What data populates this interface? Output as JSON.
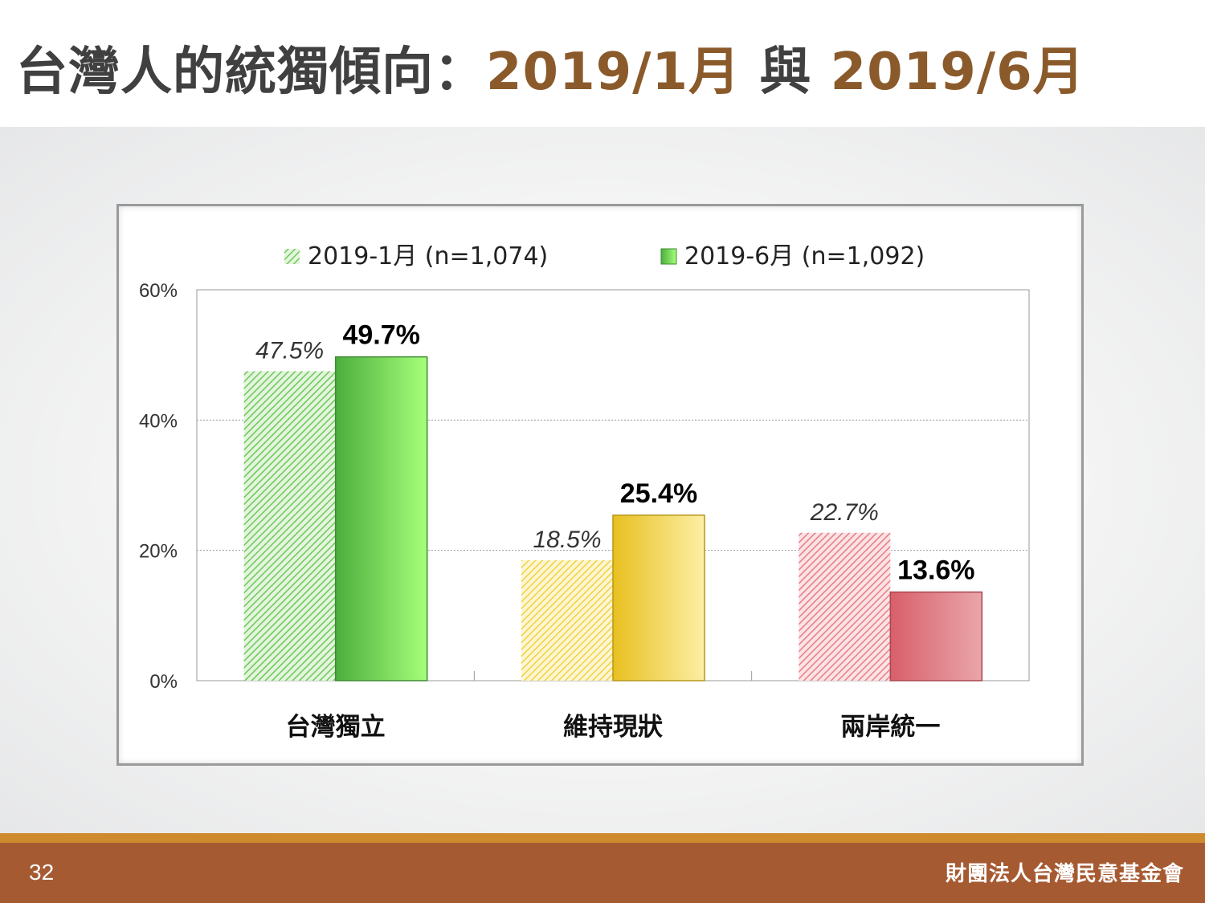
{
  "slide": {
    "title_prefix": "台灣人的統獨傾向：",
    "title_date1": "2019/1月",
    "title_connector": " 與 ",
    "title_date2": "2019/6月",
    "page_number": "32",
    "organization": "財團法人台灣民意基金會"
  },
  "colors": {
    "title_text": "#404040",
    "title_accent": "#8b5a2b",
    "footer_bar": "#a65a32",
    "footer_line": "#d08a2e",
    "green_light": "#6cc85a",
    "green_dark": "#4cae3e",
    "yellow_light": "#f2d23c",
    "yellow_dark": "#e8c020",
    "red_light": "#e87c86",
    "red_dark": "#d95f6a"
  },
  "chart_data": {
    "type": "bar",
    "categories": [
      "台灣獨立",
      "維持現狀",
      "兩岸統一"
    ],
    "series": [
      {
        "name": "2019-1月 (n=1,074)",
        "values": [
          47.5,
          18.5,
          22.7
        ],
        "labels": [
          "47.5%",
          "18.5%",
          "22.7%"
        ]
      },
      {
        "name": "2019-6月 (n=1,092)",
        "values": [
          49.7,
          25.4,
          13.6
        ],
        "labels": [
          "49.7%",
          "25.4%",
          "13.6%"
        ]
      }
    ],
    "yticks": [
      "0%",
      "20%",
      "40%",
      "60%"
    ],
    "ylim": [
      0,
      60
    ],
    "legend_position": "top",
    "grid": true
  }
}
